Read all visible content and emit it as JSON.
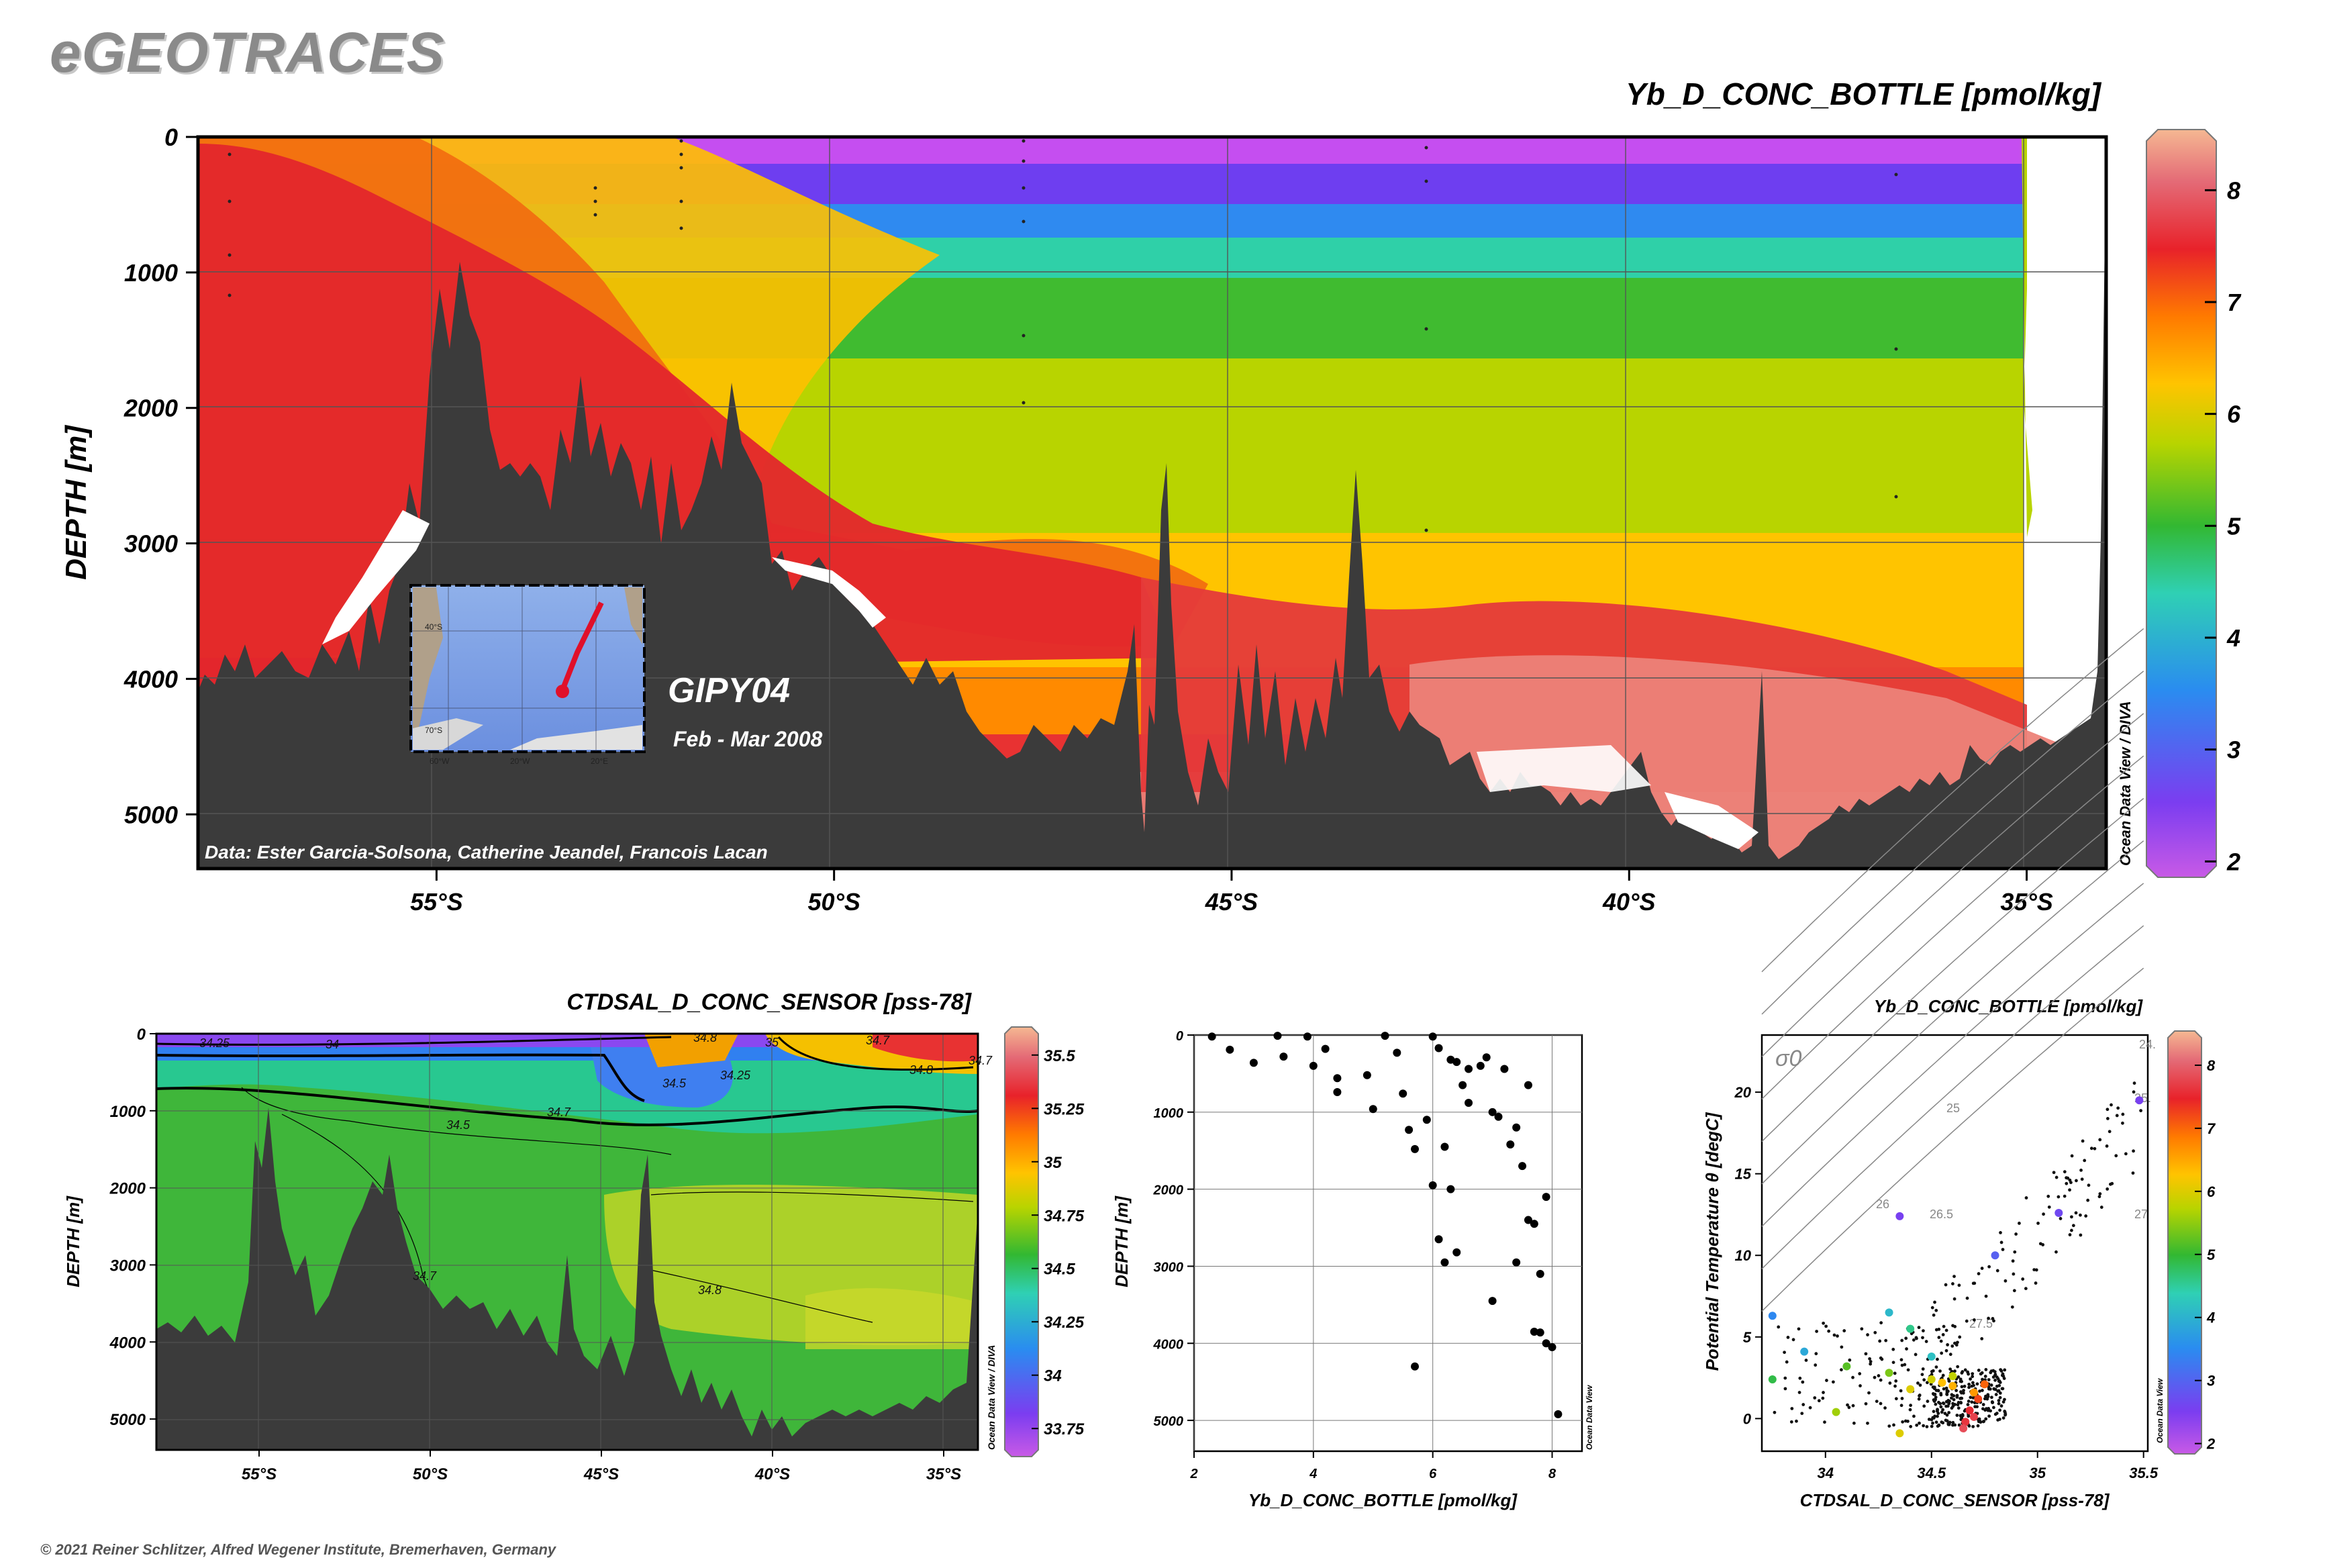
{
  "header": {
    "brand": "eGEOTRACES",
    "copyright": "© 2021 Reiner Schlitzer, Alfred Wegener Institute, Bremerhaven, Germany"
  },
  "chart_data": [
    {
      "type": "heatmap",
      "title": "Yb_D_CONC_BOTTLE [pmol/kg]",
      "xlabel": "",
      "ylabel": "DEPTH [m]",
      "x_ticks": [
        "55°S",
        "50°S",
        "45°S",
        "40°S",
        "35°S"
      ],
      "x_tick_values": [
        -55,
        -50,
        -45,
        -40,
        -35
      ],
      "xlim": [
        -58,
        -34
      ],
      "y_ticks": [
        "0",
        "1000",
        "2000",
        "3000",
        "4000",
        "5000"
      ],
      "y_tick_values": [
        0,
        1000,
        2000,
        3000,
        4000,
        5000
      ],
      "ylim": [
        5400,
        0
      ],
      "colorbar": {
        "ticks": [
          "2",
          "3",
          "4",
          "5",
          "6",
          "7",
          "8"
        ],
        "tick_values": [
          2,
          3,
          4,
          5,
          6,
          7,
          8
        ],
        "range": [
          1.9,
          8.5
        ]
      },
      "cruise_label": "GIPY04",
      "date_label": "Feb - Mar 2008",
      "credit": "Data: Ester Garcia-Solsona, Catherine Jeandel, Francois Lacan",
      "watermark": "Ocean Data View / DIVA",
      "inset_map": {
        "lat_labels": [
          "40°S",
          "70°S"
        ],
        "lon_labels": [
          "60°W",
          "20°W",
          "20°E"
        ],
        "track": [
          [
            -38,
            -2
          ],
          [
            -58,
            0
          ]
        ]
      }
    },
    {
      "type": "heatmap",
      "title": "CTDSAL_D_CONC_SENSOR [pss-78]",
      "xlabel": "",
      "ylabel": "DEPTH [m]",
      "x_ticks": [
        "55°S",
        "50°S",
        "45°S",
        "40°S",
        "35°S"
      ],
      "x_tick_values": [
        -55,
        -50,
        -45,
        -40,
        -35
      ],
      "xlim": [
        -58,
        -34
      ],
      "y_ticks": [
        "0",
        "1000",
        "2000",
        "3000",
        "4000",
        "5000"
      ],
      "y_tick_values": [
        0,
        1000,
        2000,
        3000,
        4000,
        5000
      ],
      "ylim": [
        5400,
        0
      ],
      "colorbar": {
        "ticks": [
          "33.75",
          "34",
          "34.25",
          "34.5",
          "34.75",
          "35",
          "35.25",
          "35.5"
        ],
        "tick_values": [
          33.75,
          34,
          34.25,
          34.5,
          34.75,
          35,
          35.25,
          35.5
        ],
        "range": [
          33.65,
          35.6
        ]
      },
      "contour_labels": [
        "34.25",
        "34",
        "34.7",
        "34.5",
        "34.25",
        "34.8",
        "35",
        "34.7",
        "34.8",
        "34.5",
        "34.7",
        "34.7",
        "34.8"
      ],
      "watermark": "Ocean Data View / DIVA"
    },
    {
      "type": "scatter",
      "title": "",
      "xlabel": "Yb_D_CONC_BOTTLE [pmol/kg]",
      "ylabel": "DEPTH [m]",
      "x_ticks": [
        "2",
        "4",
        "6",
        "8"
      ],
      "x_tick_values": [
        2,
        4,
        6,
        8
      ],
      "xlim": [
        2,
        8.5
      ],
      "y_ticks": [
        "0",
        "1000",
        "2000",
        "3000",
        "4000",
        "5000"
      ],
      "y_tick_values": [
        0,
        1000,
        2000,
        3000,
        4000,
        5000
      ],
      "ylim": [
        5400,
        0
      ],
      "watermark": "Ocean Data View",
      "points": [
        {
          "x": 2.3,
          "y": 20
        },
        {
          "x": 2.6,
          "y": 190
        },
        {
          "x": 3.4,
          "y": 10
        },
        {
          "x": 3.0,
          "y": 360
        },
        {
          "x": 3.5,
          "y": 280
        },
        {
          "x": 3.9,
          "y": 20
        },
        {
          "x": 4.0,
          "y": 400
        },
        {
          "x": 4.2,
          "y": 180
        },
        {
          "x": 4.4,
          "y": 560
        },
        {
          "x": 4.4,
          "y": 740
        },
        {
          "x": 4.9,
          "y": 520
        },
        {
          "x": 5.2,
          "y": 10
        },
        {
          "x": 5.0,
          "y": 960
        },
        {
          "x": 5.4,
          "y": 230
        },
        {
          "x": 5.5,
          "y": 760
        },
        {
          "x": 5.6,
          "y": 1230
        },
        {
          "x": 5.7,
          "y": 1480
        },
        {
          "x": 5.9,
          "y": 1100
        },
        {
          "x": 6.0,
          "y": 20
        },
        {
          "x": 6.1,
          "y": 170
        },
        {
          "x": 6.3,
          "y": 320
        },
        {
          "x": 6.4,
          "y": 350
        },
        {
          "x": 6.6,
          "y": 440
        },
        {
          "x": 6.5,
          "y": 650
        },
        {
          "x": 6.2,
          "y": 1450
        },
        {
          "x": 6.0,
          "y": 1950
        },
        {
          "x": 6.3,
          "y": 2000
        },
        {
          "x": 6.1,
          "y": 2650
        },
        {
          "x": 6.2,
          "y": 2950
        },
        {
          "x": 6.4,
          "y": 2820
        },
        {
          "x": 6.8,
          "y": 400
        },
        {
          "x": 6.9,
          "y": 290
        },
        {
          "x": 7.2,
          "y": 440
        },
        {
          "x": 7.0,
          "y": 1000
        },
        {
          "x": 7.1,
          "y": 1060
        },
        {
          "x": 7.4,
          "y": 1200
        },
        {
          "x": 7.5,
          "y": 1700
        },
        {
          "x": 7.6,
          "y": 2400
        },
        {
          "x": 7.7,
          "y": 2450
        },
        {
          "x": 7.4,
          "y": 2950
        },
        {
          "x": 7.8,
          "y": 3100
        },
        {
          "x": 7.0,
          "y": 3450
        },
        {
          "x": 7.7,
          "y": 3850
        },
        {
          "x": 7.8,
          "y": 3860
        },
        {
          "x": 7.9,
          "y": 4000
        },
        {
          "x": 8.0,
          "y": 4050
        },
        {
          "x": 5.7,
          "y": 4300
        },
        {
          "x": 8.1,
          "y": 4920
        },
        {
          "x": 7.6,
          "y": 650
        },
        {
          "x": 6.6,
          "y": 880
        },
        {
          "x": 7.9,
          "y": 2100
        },
        {
          "x": 7.3,
          "y": 1420
        }
      ]
    },
    {
      "type": "scatter",
      "title": "Yb_D_CONC_BOTTLE [pmol/kg]",
      "xlabel": "CTDSAL_D_CONC_SENSOR [pss-78]",
      "ylabel": "Potential Temperature θ [degC]",
      "x_ticks": [
        "34",
        "34.5",
        "35",
        "35.5"
      ],
      "x_tick_values": [
        34,
        34.5,
        35,
        35.5
      ],
      "xlim": [
        33.7,
        35.52
      ],
      "y_ticks": [
        "0",
        "5",
        "10",
        "15",
        "20"
      ],
      "y_tick_values": [
        0,
        5,
        10,
        15,
        20
      ],
      "ylim": [
        -2,
        23.5
      ],
      "isopycnal_symbol": "σ0",
      "isopycnal_labels": [
        "24.",
        "25",
        "25.",
        "26",
        "26.5",
        "27",
        "27.5"
      ],
      "colorbar": {
        "ticks": [
          "2",
          "3",
          "4",
          "5",
          "6",
          "7",
          "8"
        ],
        "tick_values": [
          2,
          3,
          4,
          5,
          6,
          7,
          8
        ],
        "range": [
          1.9,
          8.5
        ]
      },
      "watermark": "Ocean Data View",
      "colored_points": [
        {
          "x": 35.48,
          "y": 19.5,
          "v": 2.6
        },
        {
          "x": 35.1,
          "y": 12.6,
          "v": 2.7
        },
        {
          "x": 34.35,
          "y": 12.4,
          "v": 2.6
        },
        {
          "x": 34.8,
          "y": 10,
          "v": 3.0
        },
        {
          "x": 33.75,
          "y": 6.3,
          "v": 3.5
        },
        {
          "x": 33.9,
          "y": 4.1,
          "v": 3.9
        },
        {
          "x": 34.3,
          "y": 6.5,
          "v": 4.1
        },
        {
          "x": 34.4,
          "y": 5.5,
          "v": 4.6
        },
        {
          "x": 34.5,
          "y": 3.8,
          "v": 4.2
        },
        {
          "x": 33.75,
          "y": 2.4,
          "v": 4.9
        },
        {
          "x": 34.1,
          "y": 3.2,
          "v": 5.2
        },
        {
          "x": 34.3,
          "y": 2.8,
          "v": 5.4
        },
        {
          "x": 34.6,
          "y": 2.6,
          "v": 5.8
        },
        {
          "x": 34.05,
          "y": 0.4,
          "v": 5.6
        },
        {
          "x": 34.4,
          "y": 1.8,
          "v": 6.0
        },
        {
          "x": 34.55,
          "y": 2.2,
          "v": 6.3
        },
        {
          "x": 34.7,
          "y": 1.6,
          "v": 6.6
        },
        {
          "x": 34.35,
          "y": -0.9,
          "v": 6.0
        },
        {
          "x": 34.75,
          "y": 2.1,
          "v": 7.0
        },
        {
          "x": 34.72,
          "y": 1.2,
          "v": 7.2
        },
        {
          "x": 34.68,
          "y": 0.5,
          "v": 7.5
        },
        {
          "x": 34.66,
          "y": -0.2,
          "v": 7.6
        },
        {
          "x": 34.65,
          "y": -0.6,
          "v": 7.8
        },
        {
          "x": 34.7,
          "y": 0.1,
          "v": 7.7
        },
        {
          "x": 34.6,
          "y": 2.0,
          "v": 6.4
        },
        {
          "x": 34.5,
          "y": 2.4,
          "v": 5.9
        }
      ]
    }
  ]
}
